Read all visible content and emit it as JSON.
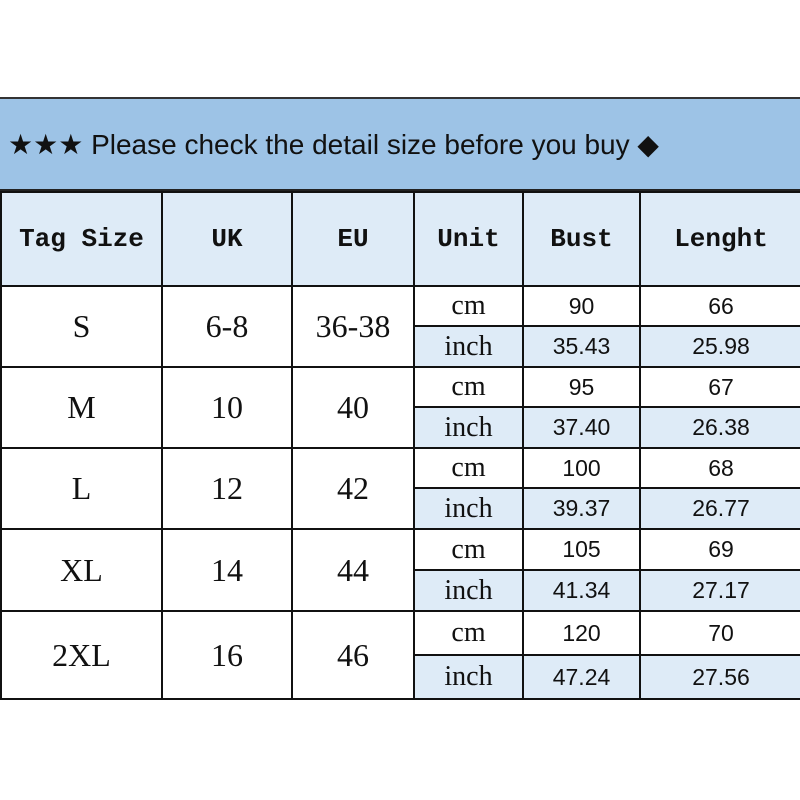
{
  "banner": "★★★ Please check the detail size before you buy ◆",
  "colors": {
    "banner_bg": "#9dc3e6",
    "header_bg": "#deebf7"
  },
  "headers": [
    "Tag Size",
    "UK",
    "EU",
    "Unit",
    "Bust",
    "Lenght"
  ],
  "rows": [
    {
      "tag": "S",
      "uk": "6-8",
      "eu": "36-38",
      "cm_label": "cm",
      "inch_label": "inch",
      "bust_cm": "90",
      "length_cm": "66",
      "bust_inch": "35.43",
      "length_inch": "25.98"
    },
    {
      "tag": "M",
      "uk": "10",
      "eu": "40",
      "cm_label": "cm",
      "inch_label": "inch",
      "bust_cm": "95",
      "length_cm": "67",
      "bust_inch": "37.40",
      "length_inch": "26.38"
    },
    {
      "tag": "L",
      "uk": "12",
      "eu": "42",
      "cm_label": "cm",
      "inch_label": "inch",
      "bust_cm": "100",
      "length_cm": "68",
      "bust_inch": "39.37",
      "length_inch": "26.77"
    },
    {
      "tag": "XL",
      "uk": "14",
      "eu": "44",
      "cm_label": "cm",
      "inch_label": "inch",
      "bust_cm": "105",
      "length_cm": "69",
      "bust_inch": "41.34",
      "length_inch": "27.17"
    },
    {
      "tag": "2XL",
      "uk": "16",
      "eu": "46",
      "cm_label": "cm",
      "inch_label": "inch",
      "bust_cm": "120",
      "length_cm": "70",
      "bust_inch": "47.24",
      "length_inch": "27.56"
    }
  ]
}
